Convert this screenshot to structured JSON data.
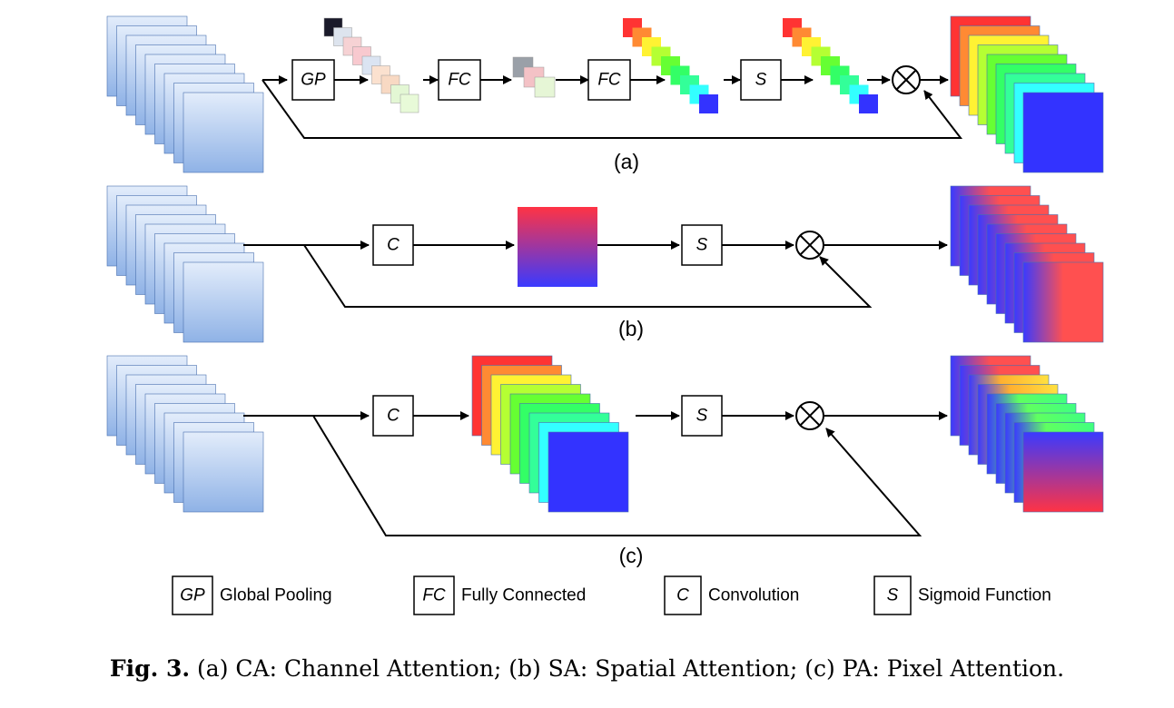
{
  "diagram": {
    "panels": [
      {
        "label": "(a)",
        "ops": [
          "GP",
          "FC",
          "FC",
          "S"
        ],
        "multiply_symbol": "⊗"
      },
      {
        "label": "(b)",
        "ops": [
          "C",
          "S"
        ],
        "multiply_symbol": "⊗"
      },
      {
        "label": "(c)",
        "ops": [
          "C",
          "S"
        ],
        "multiply_symbol": "⊗"
      }
    ],
    "legend": [
      {
        "key": "GP",
        "text": "Global Pooling"
      },
      {
        "key": "FC",
        "text": "Fully Connected"
      },
      {
        "key": "C",
        "text": "Convolution"
      },
      {
        "key": "S",
        "text": "Sigmoid Function"
      }
    ],
    "colors": {
      "input_light": "#dfeafb",
      "input_dark": "#8fb2e6",
      "spectrum": [
        "#ff3333",
        "#ff8a33",
        "#fff233",
        "#b5ff33",
        "#66ff33",
        "#33ff66",
        "#33ff99",
        "#33ffff",
        "#3333ff"
      ],
      "attention_top": "#ff3344",
      "attention_bottom": "#3a3aff"
    }
  },
  "caption": {
    "fig": "Fig. 3.",
    "text": " (a) CA: Channel Attention; (b) SA: Spatial Attention; (c) PA: Pixel Attention."
  }
}
